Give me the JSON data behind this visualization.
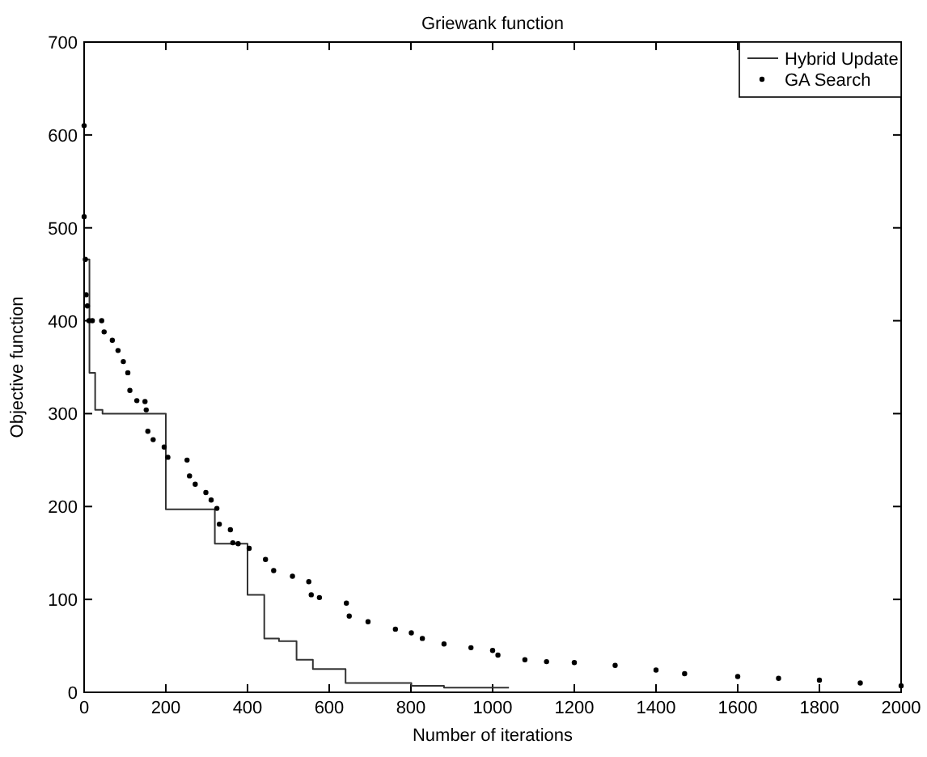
{
  "chart_data": {
    "type": "scatter",
    "title": "Griewank function",
    "xlabel": "Number of iterations",
    "ylabel": "Objective function",
    "xlim": [
      0,
      2000
    ],
    "ylim": [
      0,
      700
    ],
    "xticks": [
      0,
      200,
      400,
      600,
      800,
      1000,
      1200,
      1400,
      1600,
      1800,
      2000
    ],
    "yticks": [
      0,
      100,
      200,
      300,
      400,
      500,
      600,
      700
    ],
    "grid": false,
    "legend": "top right",
    "series": [
      {
        "name": "Hybrid Update",
        "type": "step",
        "color": "#333333",
        "marker": "none",
        "line_style": "solid",
        "x": [
          0,
          13,
          27,
          45,
          200,
          320,
          400,
          441,
          477,
          520,
          560,
          640,
          801,
          881,
          1040
        ],
        "values": [
          466,
          344,
          304,
          300,
          197,
          160,
          105,
          58,
          55,
          35,
          25,
          10,
          7,
          5,
          5
        ]
      },
      {
        "name": "GA Search",
        "type": "scatter",
        "color": "#000000",
        "marker": "circle",
        "x": [
          0,
          0,
          3,
          5,
          8,
          12,
          20,
          43,
          49,
          69,
          83,
          96,
          107,
          112,
          129,
          149,
          152,
          156,
          169,
          196,
          205,
          252,
          258,
          272,
          298,
          311,
          325,
          331,
          358,
          364,
          377,
          404,
          444,
          464,
          510,
          550,
          556,
          576,
          642,
          649,
          695,
          762,
          801,
          828,
          881,
          947,
          1000,
          1013,
          1079,
          1132,
          1200,
          1300,
          1400,
          1470,
          1600,
          1700,
          1800,
          1900,
          2000
        ],
        "values": [
          610,
          512,
          466,
          428,
          416,
          400,
          400,
          400,
          388,
          379,
          368,
          356,
          344,
          325,
          314,
          313,
          304,
          281,
          272,
          264,
          253,
          250,
          233,
          224,
          215,
          207,
          198,
          181,
          175,
          161,
          160,
          155,
          143,
          131,
          125,
          119,
          105,
          102,
          96,
          82,
          76,
          68,
          64,
          58,
          52,
          48,
          45,
          40,
          35,
          33,
          32,
          29,
          24,
          20,
          17,
          15,
          13,
          10,
          7
        ]
      }
    ]
  }
}
